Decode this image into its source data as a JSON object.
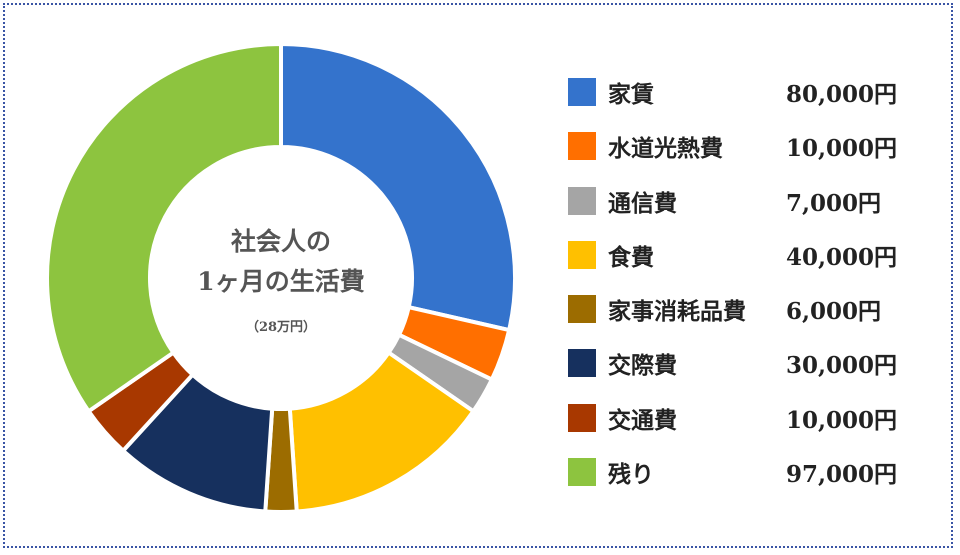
{
  "chart_data": {
    "type": "pie",
    "title": "社会人の",
    "title_line2": "1ヶ月の生活費",
    "subtitle": "（28万円）",
    "donut": true,
    "legend_position": "right",
    "slices": [
      {
        "label": "家賃",
        "value": 80000,
        "value_label": "80,000円",
        "color": "#3473cc"
      },
      {
        "label": "水道光熱費",
        "value": 10000,
        "value_label": "10,000円",
        "color": "#ff6f00"
      },
      {
        "label": "通信費",
        "value": 7000,
        "value_label": "7,000円",
        "color": "#a5a5a5"
      },
      {
        "label": "食費",
        "value": 40000,
        "value_label": "40,000円",
        "color": "#ffc000"
      },
      {
        "label": "家事消耗品費",
        "value": 6000,
        "value_label": "6,000円",
        "color": "#9c6c00"
      },
      {
        "label": "交際費",
        "value": 30000,
        "value_label": "30,000円",
        "color": "#16305e"
      },
      {
        "label": "交通費",
        "value": 10000,
        "value_label": "10,000円",
        "color": "#a83800"
      },
      {
        "label": "残り",
        "value": 97000,
        "value_label": "97,000円",
        "color": "#8dc43f"
      }
    ]
  }
}
